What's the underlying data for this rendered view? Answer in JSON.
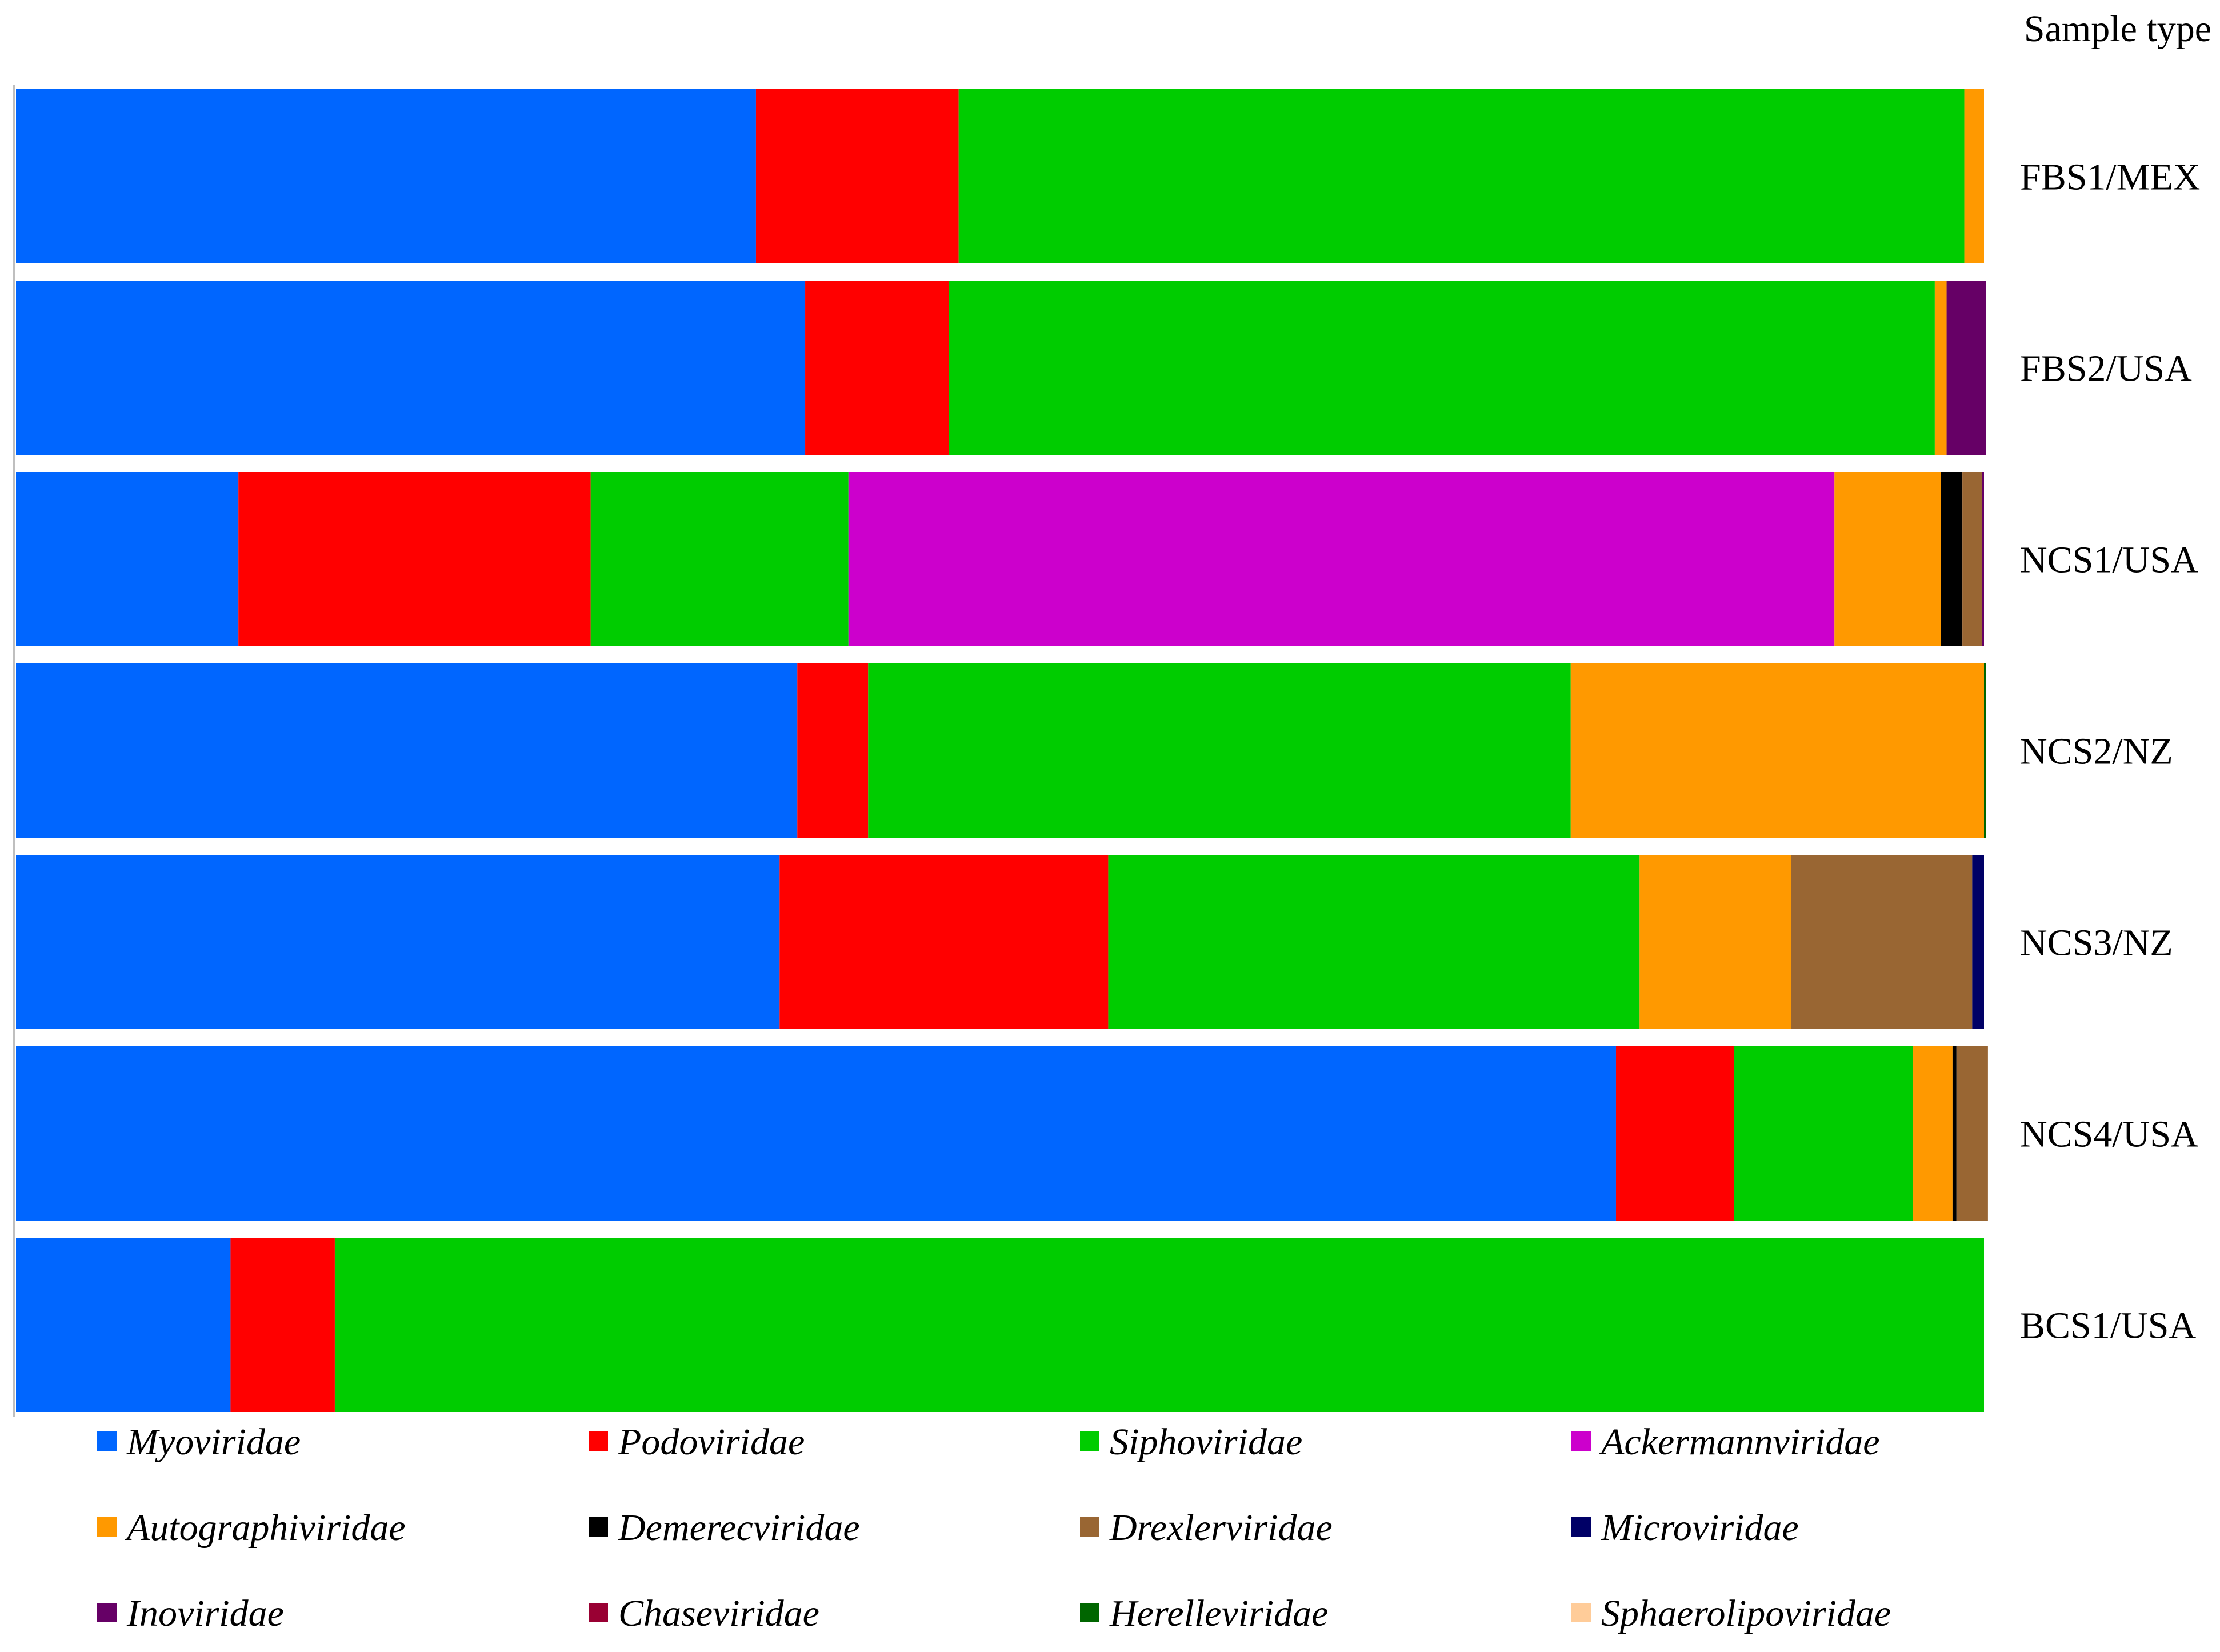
{
  "chart_data": {
    "type": "bar",
    "orientation": "horizontal",
    "stacked": true,
    "normalized": true,
    "header_label": "Sample type",
    "xlim": [
      0,
      100
    ],
    "grid": false,
    "legend_position": "bottom",
    "categories": [
      "FBS1/MEX",
      "FBS2/USA",
      "NCS1/USA",
      "NCS2/NZ",
      "NCS3/NZ",
      "NCS4/USA",
      "BCS1/USA"
    ],
    "series": [
      {
        "name": "Myoviridae",
        "color": "#0066ff",
        "values": [
          37.6,
          40.1,
          11.3,
          39.7,
          38.8,
          81.3,
          10.9
        ]
      },
      {
        "name": "Podoviridae",
        "color": "#ff0000",
        "values": [
          10.3,
          7.3,
          17.9,
          3.6,
          16.7,
          6.0,
          5.3
        ]
      },
      {
        "name": "Siphoviridae",
        "color": "#00cc00",
        "values": [
          51.1,
          50.1,
          13.1,
          35.7,
          27.0,
          9.1,
          83.8
        ]
      },
      {
        "name": "Ackermannviridae",
        "color": "#cc00cc",
        "values": [
          0,
          0,
          50.1,
          0,
          0,
          0,
          0
        ]
      },
      {
        "name": "Autographiviridae",
        "color": "#ff9900",
        "values": [
          1.0,
          0.6,
          5.4,
          21.0,
          7.7,
          2.0,
          0
        ]
      },
      {
        "name": "Demerecviridae",
        "color": "#000000",
        "values": [
          0,
          0,
          1.1,
          0,
          0,
          0.2,
          0
        ]
      },
      {
        "name": "Drexlerviridae",
        "color": "#996633",
        "values": [
          0,
          0,
          1.0,
          0,
          9.2,
          1.6,
          0
        ]
      },
      {
        "name": "Microviridae",
        "color": "#000066",
        "values": [
          0,
          0,
          0,
          0,
          0.6,
          0,
          0
        ]
      },
      {
        "name": "Inoviridae",
        "color": "#660066",
        "values": [
          0,
          2.0,
          0.1,
          0,
          0,
          0,
          0
        ]
      },
      {
        "name": "Chaseviridae",
        "color": "#990033",
        "values": [
          0,
          0,
          0,
          0,
          0,
          0,
          0
        ]
      },
      {
        "name": "Herelleviridae",
        "color": "#006600",
        "values": [
          0,
          0,
          0,
          0.1,
          0,
          0,
          0
        ]
      },
      {
        "name": "Sphaerolipoviridae",
        "color": "#ffcc99",
        "values": [
          0,
          0,
          0,
          0,
          0,
          0,
          0
        ]
      }
    ]
  }
}
